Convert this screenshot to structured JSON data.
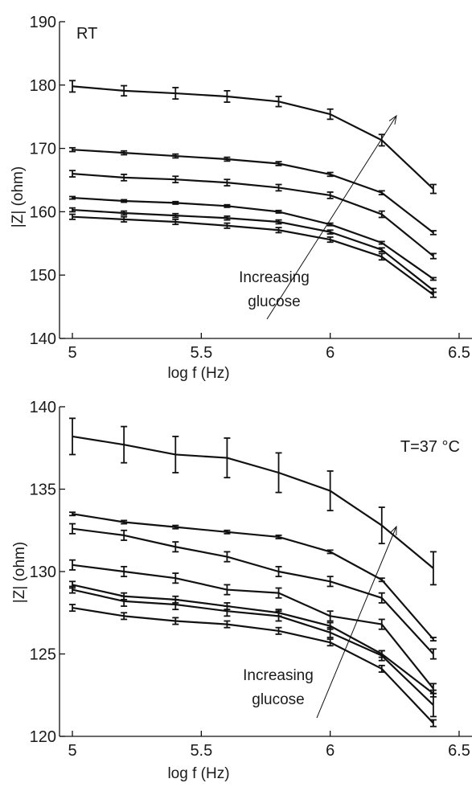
{
  "chart_data": [
    {
      "type": "line",
      "panel_label": "RT",
      "xlabel": "log f (Hz)",
      "ylabel": "|Z| (ohm)",
      "xlim": [
        4.95,
        6.55
      ],
      "ylim": [
        140,
        190
      ],
      "xticks": [
        "5",
        "5.5",
        "6",
        "6.5"
      ],
      "yticks": [
        "140",
        "150",
        "160",
        "170",
        "180",
        "190"
      ],
      "annotation": {
        "text_line1": "Increasing",
        "text_line2": "glucose",
        "arrow": "points toward higher impedance curves"
      },
      "x": [
        5.0,
        5.2,
        5.4,
        5.6,
        5.8,
        6.0,
        6.2,
        6.4
      ],
      "series": [
        {
          "values": [
            179.8,
            179.1,
            178.7,
            178.2,
            177.4,
            175.4,
            171.3,
            163.6
          ],
          "errors": [
            0.9,
            0.8,
            0.9,
            0.9,
            0.8,
            0.8,
            0.9,
            0.7
          ]
        },
        {
          "values": [
            169.8,
            169.3,
            168.8,
            168.3,
            167.6,
            165.9,
            163.0,
            156.7
          ],
          "errors": [
            0.3,
            0.3,
            0.3,
            0.3,
            0.3,
            0.3,
            0.3,
            0.3
          ]
        },
        {
          "values": [
            166.0,
            165.4,
            165.1,
            164.6,
            163.8,
            162.6,
            159.6,
            153.0
          ],
          "errors": [
            0.5,
            0.5,
            0.5,
            0.5,
            0.5,
            0.5,
            0.5,
            0.4
          ]
        },
        {
          "values": [
            162.2,
            161.7,
            161.4,
            160.9,
            160.0,
            158.0,
            155.1,
            149.4
          ],
          "errors": [
            0.2,
            0.2,
            0.2,
            0.2,
            0.2,
            0.2,
            0.2,
            0.2
          ]
        },
        {
          "values": [
            160.3,
            159.8,
            159.4,
            159.0,
            158.4,
            156.8,
            154.0,
            147.6
          ],
          "errors": [
            0.3,
            0.3,
            0.3,
            0.3,
            0.3,
            0.3,
            0.3,
            0.3
          ]
        },
        {
          "values": [
            159.2,
            158.8,
            158.4,
            157.8,
            157.1,
            155.6,
            152.9,
            146.9
          ],
          "errors": [
            0.4,
            0.4,
            0.4,
            0.4,
            0.4,
            0.4,
            0.5,
            0.4
          ]
        }
      ]
    },
    {
      "type": "line",
      "panel_label": "T=37 °C",
      "xlabel": "log f (Hz)",
      "ylabel": "|Z| (ohm)",
      "xlim": [
        4.95,
        6.55
      ],
      "ylim": [
        120,
        140
      ],
      "xticks": [
        "5",
        "5.5",
        "6",
        "6.5"
      ],
      "yticks": [
        "120",
        "125",
        "130",
        "135",
        "140"
      ],
      "annotation": {
        "text_line1": "Increasing",
        "text_line2": "glucose",
        "arrow": "points toward higher impedance curves"
      },
      "x": [
        5.0,
        5.2,
        5.4,
        5.6,
        5.8,
        6.0,
        6.2,
        6.4
      ],
      "series": [
        {
          "values": [
            138.2,
            137.7,
            137.1,
            136.9,
            136.0,
            134.9,
            132.8,
            130.2
          ],
          "errors": [
            1.1,
            1.1,
            1.1,
            1.2,
            1.2,
            1.2,
            1.1,
            1.0
          ]
        },
        {
          "values": [
            133.5,
            133.0,
            132.7,
            132.4,
            132.1,
            131.2,
            129.5,
            125.9
          ],
          "errors": [
            0.1,
            0.1,
            0.1,
            0.1,
            0.1,
            0.1,
            0.1,
            0.1
          ]
        },
        {
          "values": [
            132.6,
            132.2,
            131.5,
            130.9,
            130.0,
            129.4,
            128.4,
            125.0
          ],
          "errors": [
            0.3,
            0.3,
            0.3,
            0.3,
            0.3,
            0.3,
            0.3,
            0.3
          ]
        },
        {
          "values": [
            130.4,
            130.0,
            129.6,
            128.9,
            128.7,
            127.3,
            126.8,
            122.9
          ],
          "errors": [
            0.3,
            0.3,
            0.3,
            0.3,
            0.3,
            0.3,
            0.3,
            0.3
          ]
        },
        {
          "values": [
            129.2,
            128.5,
            128.3,
            127.9,
            127.5,
            126.7,
            125.0,
            122.6
          ],
          "errors": [
            0.2,
            0.2,
            0.2,
            0.2,
            0.2,
            0.2,
            0.2,
            0.2
          ]
        },
        {
          "values": [
            128.9,
            128.2,
            128.0,
            127.6,
            127.3,
            126.3,
            124.9,
            121.9
          ],
          "errors": [
            0.2,
            0.3,
            0.3,
            0.3,
            0.3,
            0.3,
            0.3,
            0.7
          ]
        },
        {
          "values": [
            127.8,
            127.3,
            127.0,
            126.8,
            126.4,
            125.7,
            124.1,
            120.8
          ],
          "errors": [
            0.2,
            0.2,
            0.2,
            0.2,
            0.2,
            0.2,
            0.2,
            0.2
          ]
        }
      ]
    }
  ]
}
